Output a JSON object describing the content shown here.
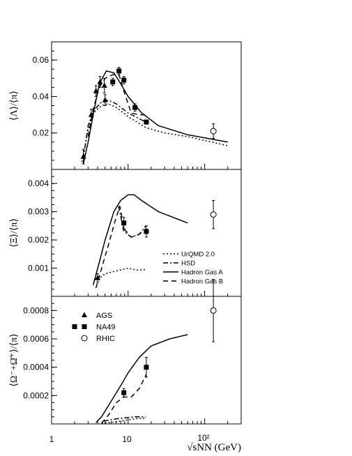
{
  "chart_data": {
    "type": "scatter",
    "xscale": "log",
    "xlim": [
      1,
      300
    ],
    "xlabel": "√sNN (GeV)",
    "xticks": [
      "1",
      "10",
      "10²"
    ],
    "legends": {
      "markers": [
        {
          "name": "AGS",
          "marker": "filled-triangle"
        },
        {
          "name": "NA49",
          "marker": "filled-square"
        },
        {
          "name": "RHIC",
          "marker": "open-circle"
        }
      ],
      "lines": [
        {
          "name": "UrQMD 2.0",
          "dash": "dotted"
        },
        {
          "name": "HSD",
          "dash": "dash-dot"
        },
        {
          "name": "Hadron Gas A",
          "dash": "solid"
        },
        {
          "name": "Hadron Gas B",
          "dash": "dashed"
        }
      ]
    },
    "panels": [
      {
        "ylabel": "⟨Λ⟩/⟨π⟩",
        "ylim": [
          0,
          0.07
        ],
        "yticks": [
          {
            "v": 0.02,
            "label": "0.02"
          },
          {
            "v": 0.04,
            "label": "0.04"
          },
          {
            "v": 0.06,
            "label": "0.06"
          }
        ],
        "points": {
          "AGS": [
            [
              2.6,
              0.007,
              0.004
            ],
            [
              3.3,
              0.03,
              0.003
            ],
            [
              3.8,
              0.043,
              0.003
            ],
            [
              4.3,
              0.048,
              0.003
            ],
            [
              4.9,
              0.046,
              0.004
            ],
            [
              5.0,
              0.038,
              0.003
            ]
          ],
          "NA49": [
            [
              6.3,
              0.048,
              0.002
            ],
            [
              7.6,
              0.054,
              0.002
            ],
            [
              8.8,
              0.049,
              0.002
            ],
            [
              12.3,
              0.034,
              0.002
            ],
            [
              17.3,
              0.026,
              0.001
            ]
          ],
          "RHIC": [
            [
              130,
              0.021,
              0.004
            ]
          ]
        },
        "curves": {
          "UrQMD 2.0": [
            [
              2.5,
              0.004
            ],
            [
              3.0,
              0.022
            ],
            [
              3.5,
              0.031
            ],
            [
              4.5,
              0.035
            ],
            [
              5.5,
              0.036
            ],
            [
              7,
              0.034
            ],
            [
              10,
              0.029
            ],
            [
              17,
              0.023
            ],
            [
              30,
              0.02
            ],
            [
              60,
              0.018
            ],
            [
              200,
              0.013
            ]
          ],
          "HSD": [
            [
              2.6,
              0.006
            ],
            [
              3.0,
              0.024
            ],
            [
              3.5,
              0.032
            ],
            [
              4.5,
              0.037
            ],
            [
              5.5,
              0.038
            ],
            [
              7,
              0.036
            ],
            [
              10,
              0.031
            ],
            [
              17,
              0.026
            ]
          ],
          "Hadron Gas A": [
            [
              2.6,
              0.003
            ],
            [
              3.0,
              0.015
            ],
            [
              3.5,
              0.03
            ],
            [
              4.2,
              0.047
            ],
            [
              5.2,
              0.054
            ],
            [
              6.5,
              0.053
            ],
            [
              8,
              0.047
            ],
            [
              10,
              0.04
            ],
            [
              15,
              0.031
            ],
            [
              25,
              0.024
            ],
            [
              60,
              0.019
            ],
            [
              200,
              0.015
            ]
          ],
          "Hadron Gas B": [
            [
              3.0,
              0.018
            ],
            [
              3.5,
              0.033
            ],
            [
              4.2,
              0.045
            ],
            [
              5.0,
              0.05
            ],
            [
              6.3,
              0.052
            ],
            [
              7.6,
              0.052
            ],
            [
              8.8,
              0.043
            ],
            [
              11,
              0.031
            ],
            [
              14,
              0.03
            ],
            [
              17.3,
              0.03
            ]
          ]
        }
      },
      {
        "ylabel": "⟨Ξ⟩/⟨π⟩",
        "ylim": [
          0,
          0.0045
        ],
        "yticks": [
          {
            "v": 0.001,
            "label": "0.001"
          },
          {
            "v": 0.002,
            "label": "0.002"
          },
          {
            "v": 0.003,
            "label": "0.003"
          },
          {
            "v": 0.004,
            "label": "0.004"
          }
        ],
        "points": {
          "AGS": [
            [
              4.0,
              0.00065,
              0.00015
            ]
          ],
          "NA49": [
            [
              8.8,
              0.0026,
              0.0002
            ],
            [
              17.3,
              0.0023,
              0.0002
            ]
          ],
          "RHIC": [
            [
              130,
              0.0029,
              0.0005
            ]
          ]
        },
        "curves": {
          "UrQMD 2.0": [
            [
              4.0,
              0.0006
            ],
            [
              5,
              0.0008
            ],
            [
              7,
              0.0009
            ],
            [
              10,
              0.001
            ],
            [
              13,
              0.00093
            ],
            [
              17,
              0.00095
            ]
          ],
          "HSD": [
            [
              7.5,
              0.0032
            ],
            [
              8.8,
              0.0023
            ],
            [
              11,
              0.0021
            ],
            [
              14,
              0.0022
            ],
            [
              17,
              0.0025
            ]
          ],
          "Hadron Gas A": [
            [
              3.5,
              0.0004
            ],
            [
              4.2,
              0.0012
            ],
            [
              5,
              0.002
            ],
            [
              6.5,
              0.003
            ],
            [
              8,
              0.0034
            ],
            [
              10,
              0.0036
            ],
            [
              12,
              0.0036
            ],
            [
              15,
              0.0034
            ],
            [
              25,
              0.003
            ],
            [
              60,
              0.0026
            ]
          ],
          "Hadron Gas B": [
            [
              3.8,
              0.0003
            ],
            [
              4.4,
              0.0009
            ],
            [
              5.5,
              0.0018
            ],
            [
              6.8,
              0.0027
            ],
            [
              7.8,
              0.0032
            ],
            [
              8.8,
              0.0024
            ],
            [
              11,
              0.0021
            ],
            [
              14,
              0.0022
            ],
            [
              17.3,
              0.0024
            ]
          ]
        }
      },
      {
        "ylabel": "⟨Ω⁻+Ω̄⁺⟩/⟨π⟩",
        "ylim": [
          0,
          0.0009
        ],
        "yticks": [
          {
            "v": 0.0002,
            "label": "0.0002"
          },
          {
            "v": 0.0004,
            "label": "0.0004"
          },
          {
            "v": 0.0006,
            "label": "0.0006"
          },
          {
            "v": 0.0008,
            "label": "0.0008"
          }
        ],
        "points": {
          "AGS": [],
          "NA49": [
            [
              8.8,
              0.00022,
              3e-05
            ],
            [
              17.3,
              0.0004,
              7e-05
            ]
          ],
          "RHIC": [
            [
              130,
              0.0008,
              0.00022
            ]
          ]
        },
        "curves": {
          "UrQMD 2.0": [
            [
              4.5,
              5e-06
            ],
            [
              6,
              1e-05
            ],
            [
              8,
              2e-05
            ],
            [
              10,
              3e-05
            ],
            [
              14,
              4e-05
            ],
            [
              17,
              4e-05
            ]
          ],
          "HSD": [
            [
              4.8,
              2e-05
            ],
            [
              6,
              3e-05
            ],
            [
              8,
              4e-05
            ],
            [
              12,
              5e-05
            ],
            [
              17,
              5e-05
            ]
          ],
          "Hadron Gas A": [
            [
              3.8,
              1e-05
            ],
            [
              4.5,
              5e-05
            ],
            [
              6,
              0.00016
            ],
            [
              8,
              0.00027
            ],
            [
              10,
              0.00036
            ],
            [
              14,
              0.00047
            ],
            [
              20,
              0.00055
            ],
            [
              35,
              0.0006
            ],
            [
              60,
              0.00063
            ]
          ],
          "Hadron Gas B": [
            [
              4.5,
              5e-06
            ],
            [
              5.5,
              6e-05
            ],
            [
              7,
              0.00015
            ],
            [
              8.8,
              0.00019
            ],
            [
              11,
              0.00019
            ],
            [
              14,
              0.00025
            ],
            [
              17.3,
              0.00035
            ]
          ]
        }
      }
    ]
  }
}
